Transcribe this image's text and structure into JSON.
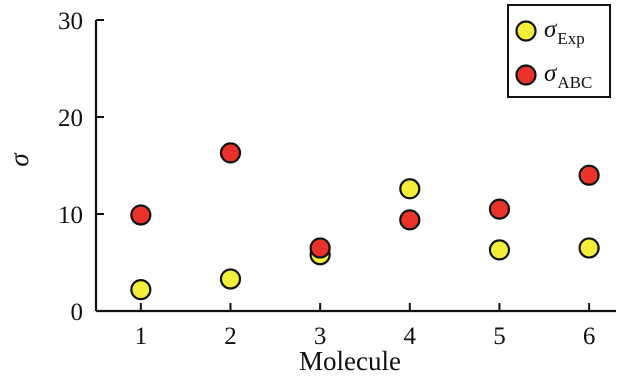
{
  "chart_data": {
    "type": "scatter",
    "title": "",
    "xlabel": "Molecule",
    "ylabel": "σ",
    "xlim": [
      0.5,
      6.3
    ],
    "ylim": [
      0,
      30
    ],
    "x_ticks": [
      "1",
      "2",
      "3",
      "4",
      "5",
      "6"
    ],
    "y_ticks": [
      "0",
      "10",
      "20",
      "30"
    ],
    "grid": false,
    "legend_position": "top-right",
    "series": [
      {
        "name": "σExp",
        "label_main": "σ",
        "label_sub": "Exp",
        "color": "#f2ee3a",
        "x": [
          1,
          2,
          3,
          4,
          5,
          6
        ],
        "y": [
          2.2,
          3.3,
          5.8,
          12.6,
          6.3,
          6.5
        ]
      },
      {
        "name": "σABC",
        "label_main": "σ",
        "label_sub": "ABC",
        "color": "#e8322a",
        "x": [
          1,
          2,
          3,
          4,
          5,
          6
        ],
        "y": [
          9.9,
          16.3,
          6.5,
          9.4,
          10.5,
          14.0
        ]
      }
    ]
  }
}
